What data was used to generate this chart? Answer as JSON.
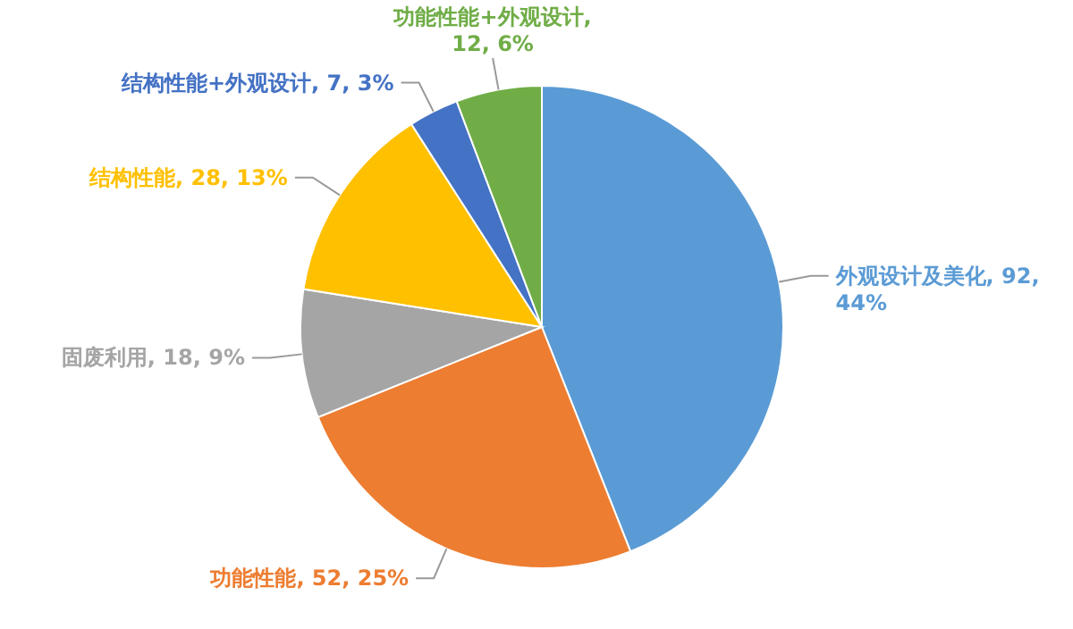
{
  "chart_data": {
    "type": "pie",
    "categories": [
      "外观设计及美化",
      "功能性能",
      "固废利用",
      "结构性能",
      "结构性能+外观设计",
      "功能性能+外观设计"
    ],
    "values": [
      92,
      52,
      18,
      28,
      7,
      12
    ],
    "colors": [
      "#5b9bd5",
      "#ed7d31",
      "#a5a5a5",
      "#ffc000",
      "#4472c4",
      "#70ad47"
    ],
    "value_labels": [
      ", 92, 44%",
      ", 52, 25%",
      ", 18, 9%",
      ", 28, 13%",
      ", 7, 3%",
      ", 12, 6%"
    ]
  }
}
